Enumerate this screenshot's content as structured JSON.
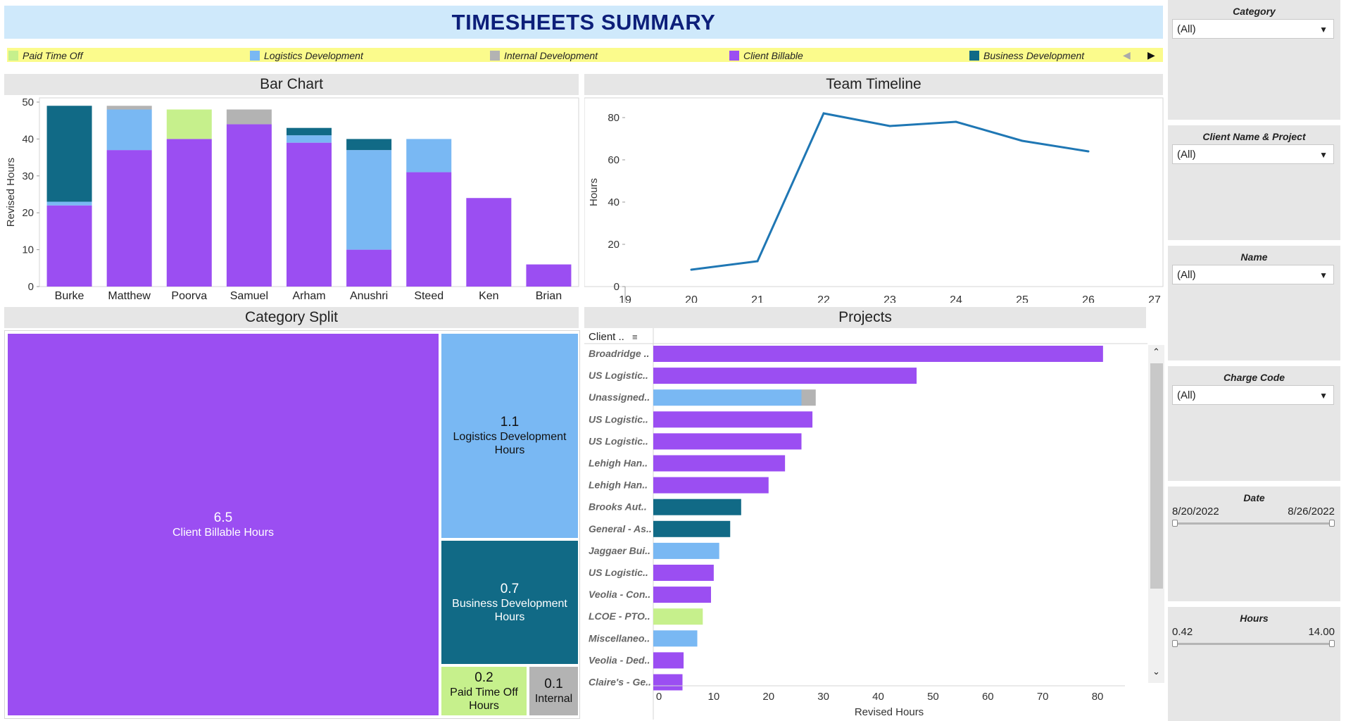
{
  "header": {
    "title": "TIMESHEETS SUMMARY"
  },
  "legend": {
    "items": [
      {
        "label": "Paid Time Off",
        "color": "#c6f08c"
      },
      {
        "label": "Logistics Development",
        "color": "#79b8f3"
      },
      {
        "label": "Internal Development",
        "color": "#b3b3b3"
      },
      {
        "label": "Client Billable",
        "color": "#9b4ef2"
      },
      {
        "label": "Business Development",
        "color": "#116a86"
      }
    ],
    "prev_icon": "triangle-left-icon",
    "next_icon": "triangle-right-icon"
  },
  "colors": {
    "client_billable": "#9b4ef2",
    "logistics_development": "#79b8f3",
    "business_development": "#116a86",
    "paid_time_off": "#c6f08c",
    "internal_development": "#b3b3b3",
    "line": "#1f77b4"
  },
  "panels": {
    "bar_title": "Bar Chart",
    "timeline_title": "Team Timeline",
    "split_title": "Category Split",
    "projects_title": "Projects",
    "projects_column_header": "Client ..",
    "sort_icon": "sort-icon"
  },
  "chart_data": [
    {
      "type": "bar",
      "stacked": true,
      "title": "Bar Chart",
      "ylabel": "Revised Hours",
      "ylim": [
        0,
        50
      ],
      "yticks": [
        0,
        10,
        20,
        30,
        40,
        50
      ],
      "categories": [
        "Burke",
        "Matthew",
        "Poorva",
        "Samuel",
        "Arham",
        "Anushri",
        "Steed",
        "Ken",
        "Brian"
      ],
      "series": [
        {
          "name": "Client Billable",
          "values": [
            22,
            37,
            40,
            44,
            39,
            10,
            31,
            24,
            6
          ]
        },
        {
          "name": "Logistics Development",
          "values": [
            1,
            11,
            0,
            0,
            2,
            27,
            9,
            0,
            0
          ]
        },
        {
          "name": "Internal Development",
          "values": [
            0,
            1,
            0,
            4,
            0,
            0,
            0,
            0,
            0
          ]
        },
        {
          "name": "Paid Time Off",
          "values": [
            0,
            0,
            8,
            0,
            0,
            0,
            0,
            0,
            0
          ]
        },
        {
          "name": "Business Development",
          "values": [
            26,
            0,
            0,
            0,
            2,
            3,
            0,
            0,
            0
          ]
        }
      ]
    },
    {
      "type": "line",
      "title": "Team Timeline",
      "ylabel": "Hours",
      "xlim": [
        19,
        27
      ],
      "ylim": [
        0,
        88
      ],
      "xticks": [
        19,
        20,
        21,
        22,
        23,
        24,
        25,
        26,
        27
      ],
      "yticks": [
        0,
        20,
        40,
        60,
        80
      ],
      "x": [
        20,
        21,
        22,
        23,
        24,
        25,
        26
      ],
      "y": [
        8,
        12,
        82,
        76,
        78,
        69,
        64
      ]
    },
    {
      "type": "treemap",
      "title": "Category Split",
      "items": [
        {
          "value": "6.5",
          "label": "Client Billable Hours"
        },
        {
          "value": "1.1",
          "label": "Logistics Development Hours"
        },
        {
          "value": "0.7",
          "label": "Business Development Hours"
        },
        {
          "value": "0.2",
          "label": "Paid Time Off Hours"
        },
        {
          "value": "0.1",
          "label": "Internal"
        }
      ]
    },
    {
      "type": "bar",
      "orientation": "horizontal",
      "title": "Projects",
      "xlabel": "Revised Hours",
      "xlim": [
        0,
        85
      ],
      "xticks": [
        0,
        10,
        20,
        30,
        40,
        50,
        60,
        70,
        80
      ],
      "rows": [
        {
          "label": "Broadridge ..",
          "segments": [
            {
              "series": "Client Billable",
              "value": 81
            }
          ]
        },
        {
          "label": "US Logistic..",
          "segments": [
            {
              "series": "Client Billable",
              "value": 47
            }
          ]
        },
        {
          "label": "Unassigned..",
          "segments": [
            {
              "series": "Logistics Development",
              "value": 26
            },
            {
              "series": "Internal Development",
              "value": 2.6
            }
          ]
        },
        {
          "label": "US Logistic..",
          "segments": [
            {
              "series": "Client Billable",
              "value": 28
            }
          ]
        },
        {
          "label": "US Logistic..",
          "segments": [
            {
              "series": "Client Billable",
              "value": 26
            }
          ]
        },
        {
          "label": "Lehigh Han..",
          "segments": [
            {
              "series": "Client Billable",
              "value": 23
            }
          ]
        },
        {
          "label": "Lehigh Han..",
          "segments": [
            {
              "series": "Client Billable",
              "value": 20
            }
          ]
        },
        {
          "label": "Brooks Aut..",
          "segments": [
            {
              "series": "Business Development",
              "value": 15
            }
          ]
        },
        {
          "label": "General - As..",
          "segments": [
            {
              "series": "Business Development",
              "value": 13
            }
          ]
        },
        {
          "label": "Jaggaer Bui..",
          "segments": [
            {
              "series": "Logistics Development",
              "value": 11
            }
          ]
        },
        {
          "label": "US Logistic..",
          "segments": [
            {
              "series": "Client Billable",
              "value": 10
            }
          ]
        },
        {
          "label": "Veolia - Con..",
          "segments": [
            {
              "series": "Client Billable",
              "value": 9.5
            }
          ]
        },
        {
          "label": "LCOE - PTO..",
          "segments": [
            {
              "series": "Paid Time Off",
              "value": 8
            }
          ]
        },
        {
          "label": "Miscellaneo..",
          "segments": [
            {
              "series": "Logistics Development",
              "value": 7
            }
          ]
        },
        {
          "label": "Veolia - Ded..",
          "segments": [
            {
              "series": "Client Billable",
              "value": 4.5
            }
          ]
        },
        {
          "label": "Claire's - Ge..",
          "segments": [
            {
              "series": "Client Billable",
              "value": 4.3
            }
          ]
        }
      ]
    }
  ],
  "filters": {
    "category": {
      "title": "Category",
      "value": "(All)"
    },
    "client_project": {
      "title": "Client Name & Project",
      "value": "(All)"
    },
    "name": {
      "title": "Name",
      "value": "(All)"
    },
    "charge_code": {
      "title": "Charge Code",
      "value": "(All)"
    },
    "date": {
      "title": "Date",
      "min": "8/20/2022",
      "max": "8/26/2022"
    },
    "hours": {
      "title": "Hours",
      "min": "0.42",
      "max": "14.00"
    },
    "chevron_icon": "chevron-down-icon"
  }
}
